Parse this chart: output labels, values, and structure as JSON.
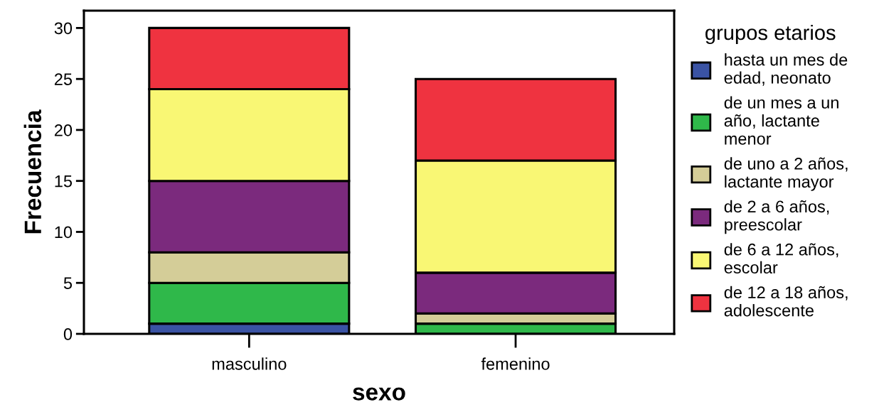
{
  "chart_data": {
    "type": "bar",
    "stacked": true,
    "xlabel": "sexo",
    "ylabel": "Frecuencia",
    "legend_title": "grupos etarios",
    "legend": "right",
    "categories": [
      "masculino",
      "femenino"
    ],
    "ylim": [
      0,
      31.7
    ],
    "yticks": [
      0,
      5,
      10,
      15,
      20,
      25,
      30
    ],
    "grid": false,
    "series": [
      {
        "name": "hasta un mes de\nedad, neonato",
        "color": "#3a53a4",
        "values": [
          1,
          0
        ]
      },
      {
        "name": "de un mes a un\naño, lactante\nmenor",
        "color": "#2fb84a",
        "values": [
          4,
          1
        ]
      },
      {
        "name": "de uno a 2 años,\nlactante mayor",
        "color": "#d4cd98",
        "values": [
          3,
          1
        ]
      },
      {
        "name": "de 2 a 6 años,\npreescolar",
        "color": "#7b2a7d",
        "values": [
          7,
          4
        ]
      },
      {
        "name": "de 6 a 12 años,\nescolar",
        "color": "#f9f774",
        "values": [
          9,
          11
        ]
      },
      {
        "name": "de 12 a 18 años,\nadolescente",
        "color": "#ef3340",
        "values": [
          6,
          8
        ]
      }
    ]
  }
}
